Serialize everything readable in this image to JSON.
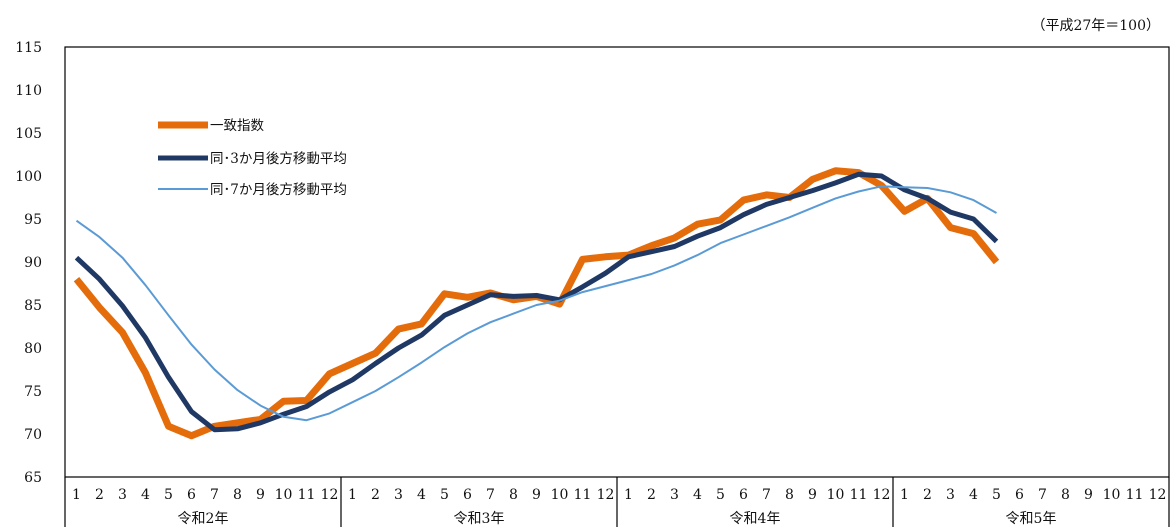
{
  "chart_data": {
    "type": "line",
    "unit_label": "（平成27年＝100）",
    "ylim": [
      65,
      115
    ],
    "yticks": [
      65,
      70,
      75,
      80,
      85,
      90,
      95,
      100,
      105,
      110,
      115
    ],
    "grid": false,
    "legend_position": "top-left",
    "months": [
      "1",
      "2",
      "3",
      "4",
      "5",
      "6",
      "7",
      "8",
      "9",
      "10",
      "11",
      "12"
    ],
    "years": [
      "令和2年",
      "令和3年",
      "令和4年",
      "令和5年"
    ],
    "series": [
      {
        "name": "一致指数",
        "color": "#E46C0A",
        "width": 7,
        "values": [
          88.0,
          84.7,
          81.8,
          77.1,
          70.9,
          69.8,
          70.9,
          71.3,
          71.7,
          73.8,
          73.9,
          77.0,
          78.2,
          79.4,
          82.2,
          82.8,
          86.3,
          85.9,
          86.4,
          85.6,
          86.0,
          85.1,
          90.3,
          90.6,
          90.8,
          91.9,
          92.8,
          94.4,
          94.9,
          97.2,
          97.8,
          97.5,
          99.6,
          100.6,
          100.4,
          98.9,
          95.9,
          97.4,
          94.0,
          93.3,
          90.0
        ]
      },
      {
        "name": "同･3か月後方移動平均",
        "color": "#1F3864",
        "width": 5,
        "values": [
          90.5,
          88.0,
          84.9,
          81.2,
          76.6,
          72.6,
          70.5,
          70.6,
          71.3,
          72.3,
          73.2,
          74.9,
          76.3,
          78.2,
          80.0,
          81.5,
          83.8,
          85.0,
          86.2,
          86.0,
          86.1,
          85.6,
          87.1,
          88.7,
          90.6,
          91.2,
          91.8,
          93.0,
          94.0,
          95.5,
          96.7,
          97.5,
          98.3,
          99.2,
          100.2,
          100.0,
          98.4,
          97.4,
          95.8,
          95.0,
          92.4
        ]
      },
      {
        "name": "同･7か月後方移動平均",
        "color": "#5B9BD5",
        "width": 2,
        "values": [
          94.8,
          92.9,
          90.5,
          87.3,
          83.8,
          80.4,
          77.5,
          75.1,
          73.3,
          72.0,
          71.6,
          72.4,
          73.7,
          75.0,
          76.6,
          78.3,
          80.1,
          81.7,
          83.0,
          84.0,
          85.0,
          85.5,
          86.5,
          87.2,
          87.9,
          88.6,
          89.6,
          90.8,
          92.2,
          93.2,
          94.2,
          95.2,
          96.3,
          97.4,
          98.2,
          98.8,
          98.7,
          98.6,
          98.1,
          97.2,
          95.7
        ]
      }
    ]
  }
}
